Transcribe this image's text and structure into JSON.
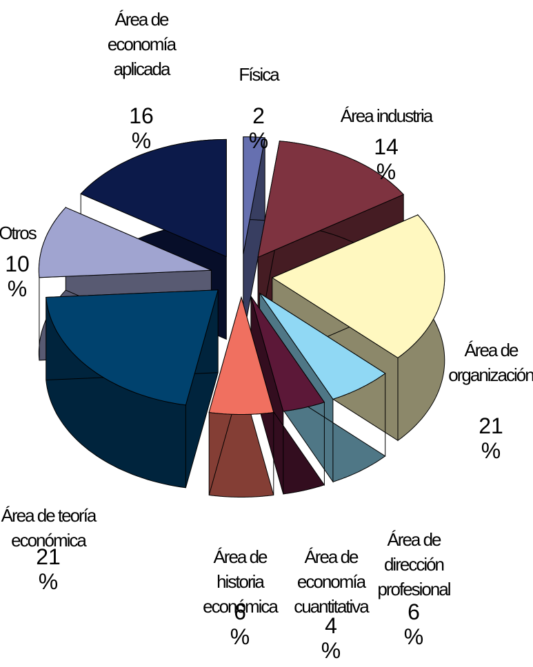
{
  "chart_data": {
    "type": "pie3d",
    "categories": [
      "Física",
      "Área industria",
      "Área de organización",
      "Área de dirección profesional",
      "Área de economía cuantitativa",
      "Área de historia económica",
      "Área de teoría económica",
      "Otros",
      "Área de economía aplicada"
    ],
    "values": [
      2,
      14,
      21,
      6,
      4,
      6,
      21,
      10,
      16
    ],
    "value_labels": [
      "2 %",
      "14 %",
      "21 %",
      "6 %",
      "4 %",
      "6 %",
      "21 %",
      "10 %",
      "16 %"
    ],
    "colors": [
      "#6670b0",
      "#7e3340",
      "#fff8c0",
      "#90d8f4",
      "#5c1838",
      "#f07060",
      "#00426e",
      "#a0a4d0",
      "#0c1a4a"
    ]
  }
}
